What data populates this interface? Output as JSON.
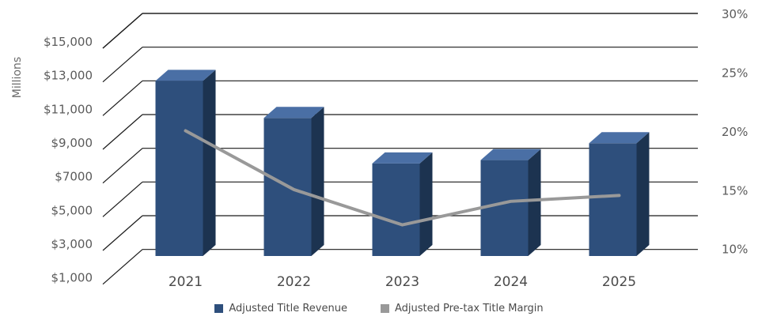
{
  "chart_data": {
    "type": "bar",
    "categories": [
      "2021",
      "2022",
      "2023",
      "2024",
      "2025"
    ],
    "ylabel": "Millions",
    "y_tick_labels": [
      "$1,000",
      "$3,000",
      "$5,000",
      "$7000",
      "$9,000",
      "$11,000",
      "$13,000",
      "$15,000"
    ],
    "y2_tick_labels": [
      "10%",
      "15%",
      "20%",
      "25%",
      "30%"
    ],
    "ylim": [
      1000,
      16000
    ],
    "y2lim": [
      8.5,
      30
    ],
    "grid": true,
    "legend_position": "bottom",
    "series": [
      {
        "name": "Adjusted Title Revenue",
        "type": "bar",
        "axis": "left",
        "color": "#2e4f7c",
        "values": [
          13500,
          11300,
          8600,
          8800,
          9800
        ]
      },
      {
        "name": "Adjusted Pre-tax Title Margin",
        "type": "line",
        "axis": "right",
        "color": "#999999",
        "values": [
          21.5,
          16.5,
          13.5,
          15.5,
          16.0
        ]
      }
    ]
  }
}
